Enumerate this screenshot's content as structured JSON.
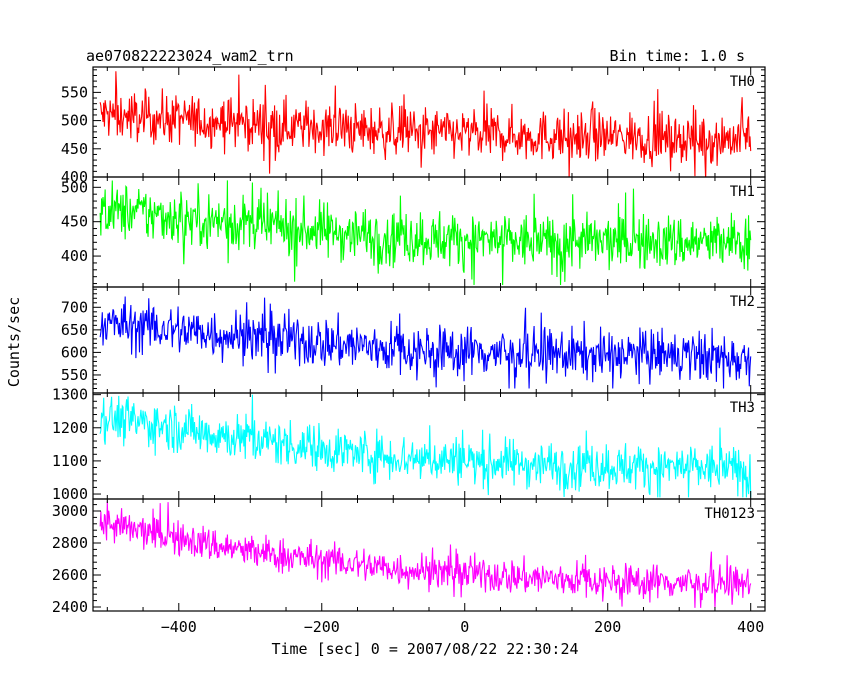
{
  "header": {
    "source": "ae070822223024_wam2_trn",
    "bin_time": "Bin time: 1.0 s"
  },
  "chart_data": {
    "type": "line",
    "xlabel": "Time [sec] 0 = 2007/08/22 22:30:24",
    "ylabel": "Counts/sec",
    "xlim": [
      -520,
      420
    ],
    "x_range": [
      -510,
      400
    ],
    "x_ticks": [
      -400,
      -200,
      0,
      200,
      400
    ],
    "x_tick_labels": [
      "−400",
      "−200",
      "0",
      "200",
      "400"
    ],
    "grid": false,
    "panels": [
      {
        "name": "TH0",
        "color": "#ff0000",
        "ylim": [
          400,
          595
        ],
        "yticks": [
          400,
          450,
          500,
          550
        ],
        "trend": [
          [
            -510,
            510
          ],
          [
            -300,
            495
          ],
          [
            -100,
            480
          ],
          [
            100,
            473
          ],
          [
            400,
            468
          ]
        ],
        "noise": 22,
        "spike_max": 600,
        "spike_min": 395
      },
      {
        "name": "TH1",
        "color": "#00ff00",
        "ylim": [
          355,
          515
        ],
        "yticks": [
          400,
          450,
          500
        ],
        "trend": [
          [
            -510,
            468
          ],
          [
            -300,
            446
          ],
          [
            -100,
            428
          ],
          [
            100,
            420
          ],
          [
            400,
            420
          ]
        ],
        "noise": 20,
        "spike_max": 510,
        "spike_min": 358
      },
      {
        "name": "TH2",
        "color": "#0000ff",
        "ylim": [
          510,
          745
        ],
        "yticks": [
          550,
          600,
          650,
          700
        ],
        "trend": [
          [
            -510,
            665
          ],
          [
            -300,
            635
          ],
          [
            -100,
            608
          ],
          [
            100,
            597
          ],
          [
            400,
            590
          ]
        ],
        "noise": 28,
        "spike_max": 745,
        "spike_min": 520
      },
      {
        "name": "TH3",
        "color": "#00ffff",
        "ylim": [
          985,
          1305
        ],
        "yticks": [
          1000,
          1100,
          1200,
          1300
        ],
        "trend": [
          [
            -510,
            1235
          ],
          [
            -300,
            1165
          ],
          [
            -100,
            1112
          ],
          [
            100,
            1090
          ],
          [
            400,
            1075
          ]
        ],
        "noise": 35,
        "spike_max": 1300,
        "spike_min": 990
      },
      {
        "name": "TH0123",
        "color": "#ff00ff",
        "ylim": [
          2375,
          3075
        ],
        "yticks": [
          2400,
          2600,
          2800,
          3000
        ],
        "trend": [
          [
            -510,
            2920
          ],
          [
            -300,
            2745
          ],
          [
            -100,
            2640
          ],
          [
            100,
            2580
          ],
          [
            400,
            2540
          ]
        ],
        "noise": 55,
        "spike_max": 3060,
        "spike_min": 2395
      }
    ]
  }
}
